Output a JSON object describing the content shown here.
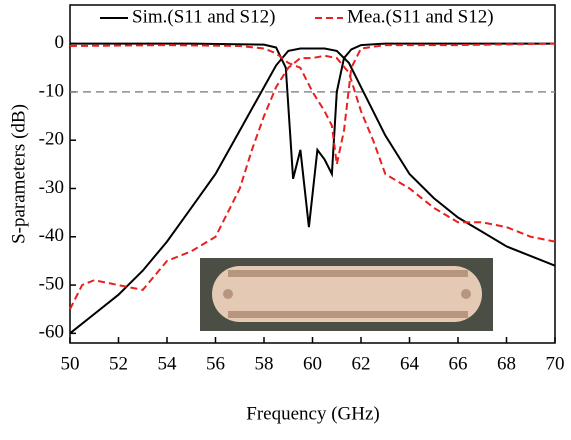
{
  "chart_data": {
    "type": "line",
    "xlabel": "Frequency (GHz)",
    "ylabel": "S-parameters (dB)",
    "xlim": [
      50,
      70
    ],
    "ylim": [
      -62,
      8
    ],
    "xticks": [
      50,
      52,
      54,
      56,
      58,
      60,
      62,
      64,
      66,
      68,
      70
    ],
    "yticks": [
      0,
      -10,
      -20,
      -30,
      -40,
      -50,
      -60
    ],
    "reference_line": {
      "value": -10,
      "color": "#8c8c8c"
    },
    "series": [
      {
        "name": "Sim.(S11 and S12)",
        "color": "#000000",
        "dash": "solid",
        "curves": [
          {
            "x": [
              50,
              51,
              52,
              53,
              54,
              55,
              56,
              57,
              58,
              58.5,
              59,
              59.5,
              60,
              60.5,
              61,
              61.5,
              62,
              63,
              64,
              65,
              66,
              67,
              68,
              69,
              70
            ],
            "values": [
              -60,
              -56,
              -52,
              -47,
              -41,
              -34,
              -27,
              -18,
              -9,
              -4.5,
              -1.5,
              -1,
              -1,
              -1,
              -1.5,
              -4,
              -9,
              -19,
              -27,
              -32,
              -36,
              -39,
              -42,
              -44,
              -46
            ]
          },
          {
            "x": [
              50,
              55,
              58,
              58.5,
              58.9,
              59.2,
              59.5,
              59.85,
              60.2,
              60.5,
              60.8,
              61,
              61.3,
              61.6,
              62,
              63,
              70
            ],
            "values": [
              0,
              0,
              -0.2,
              -0.8,
              -5,
              -28,
              -22,
              -38,
              -22,
              -24,
              -27,
              -10,
              -3,
              -1.2,
              -0.3,
              0,
              0
            ]
          }
        ]
      },
      {
        "name": "Mea.(S11 and S12)",
        "color": "#e8201e",
        "dash": "dashed",
        "curves": [
          {
            "x": [
              50,
              50.5,
              51,
              52,
              53,
              53.5,
              54,
              55,
              56,
              57,
              57.5,
              58,
              58.5,
              59,
              59.5,
              60,
              60.5,
              61,
              61.5,
              62,
              62.5,
              63,
              64,
              65,
              66,
              67,
              68,
              69,
              70
            ],
            "values": [
              -55,
              -50,
              -49,
              -50,
              -51,
              -48,
              -45,
              -43,
              -40,
              -30,
              -22,
              -15,
              -9,
              -5,
              -3,
              -3,
              -2.5,
              -3,
              -6,
              -14,
              -20,
              -27,
              -30,
              -34,
              -37,
              -37,
              -38,
              -40,
              -41
            ]
          },
          {
            "x": [
              50,
              54,
              57,
              58,
              58.5,
              59,
              59.5,
              60,
              60.5,
              60.8,
              61,
              61.3,
              61.6,
              62,
              63,
              66,
              70
            ],
            "values": [
              -0.5,
              -0.3,
              -0.5,
              -1,
              -2,
              -4,
              -5,
              -10,
              -14,
              -17,
              -25,
              -18,
              -5,
              -1,
              -0.3,
              -0.3,
              0
            ]
          }
        ]
      }
    ]
  }
}
